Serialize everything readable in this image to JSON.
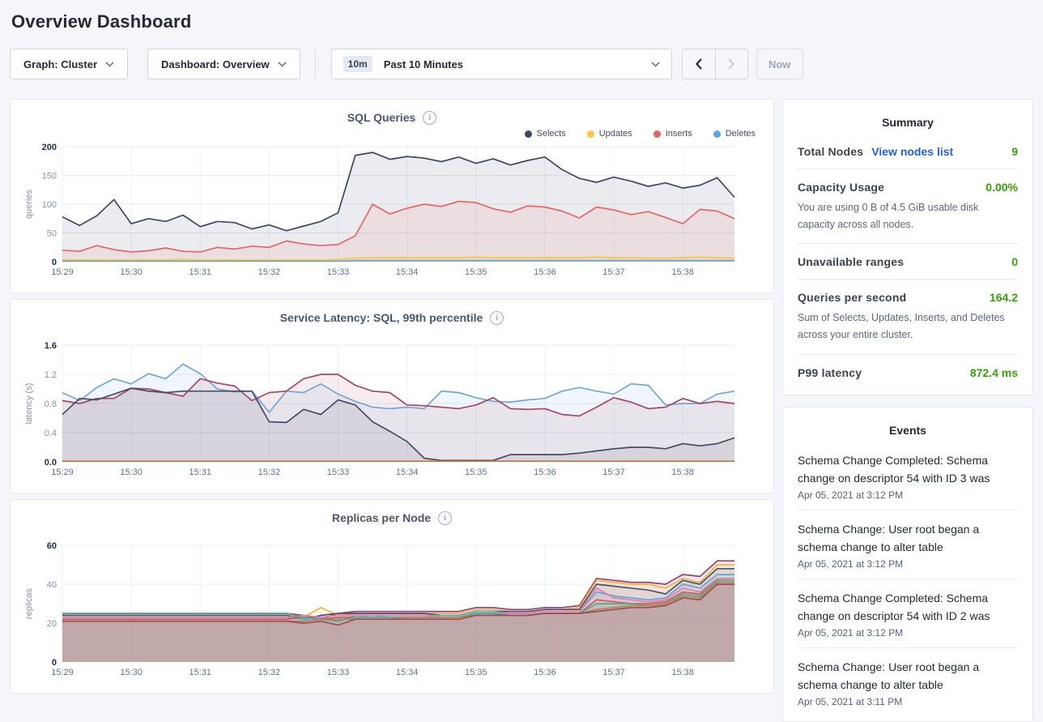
{
  "page": {
    "title": "Overview Dashboard"
  },
  "controls": {
    "graph_dropdown": {
      "label": "Graph: Cluster"
    },
    "dashboard_dropdown": {
      "label": "Dashboard: Overview"
    },
    "time_range": {
      "badge": "10m",
      "label": "Past 10 Minutes"
    },
    "prev_icon": "chevron-left",
    "next_icon": "chevron-right",
    "now_button": "Now"
  },
  "summary": {
    "title": "Summary",
    "total_nodes": {
      "label": "Total Nodes",
      "link": "View nodes list",
      "value": "9"
    },
    "capacity": {
      "label": "Capacity Usage",
      "value": "0.00%",
      "caption": "You are using 0 B of 4.5 GiB usable disk capacity across all nodes."
    },
    "unavailable": {
      "label": "Unavailable ranges",
      "value": "0"
    },
    "qps": {
      "label": "Queries per second",
      "value": "164.2",
      "caption": "Sum of Selects, Updates, Inserts, and Deletes across your entire cluster."
    },
    "p99": {
      "label": "P99 latency",
      "value": "872.4 ms"
    }
  },
  "events": {
    "title": "Events",
    "items": [
      {
        "message": "Schema Change Completed: Schema change on descriptor 54 with ID 3 was",
        "timestamp": "Apr 05, 2021 at 3:12 PM"
      },
      {
        "message": "Schema Change: User root began a schema change to alter table",
        "timestamp": "Apr 05, 2021 at 3:12 PM"
      },
      {
        "message": "Schema Change Completed: Schema change on descriptor 54 with ID 2 was",
        "timestamp": "Apr 05, 2021 at 3:12 PM"
      },
      {
        "message": "Schema Change: User root began a schema change to alter table",
        "timestamp": "Apr 05, 2021 at 3:11 PM"
      }
    ]
  },
  "chart_data": [
    {
      "type": "area",
      "title": "SQL Queries",
      "ylabel": "queries",
      "ylim": [
        0,
        200
      ],
      "yticks": [
        "0",
        "50",
        "100",
        "150",
        "200"
      ],
      "x_labels": [
        "15:29",
        "15:30",
        "15:31",
        "15:32",
        "15:33",
        "15:34",
        "15:35",
        "15:36",
        "15:37",
        "15:38"
      ],
      "points_per_tick": 4,
      "fill_opacity": 0.1,
      "legend_position": "top-right",
      "grid": true,
      "series": [
        {
          "name": "Selects",
          "color": "#3c4962",
          "values": [
            78,
            63,
            80,
            108,
            66,
            75,
            70,
            81,
            61,
            70,
            68,
            57,
            64,
            54,
            62,
            70,
            85,
            185,
            190,
            178,
            183,
            180,
            174,
            182,
            171,
            179,
            168,
            176,
            182,
            160,
            145,
            138,
            147,
            140,
            131,
            137,
            128,
            133,
            146,
            112
          ]
        },
        {
          "name": "Updates",
          "color": "#ffc53d",
          "values": [
            3,
            3,
            3,
            3,
            3,
            3,
            3,
            4,
            3,
            3,
            3,
            3,
            3,
            3,
            3,
            3,
            4,
            6,
            7,
            7,
            7,
            7,
            7,
            7,
            8,
            7,
            7,
            7,
            7,
            7,
            7,
            8,
            7,
            7,
            6,
            6,
            7,
            8,
            7,
            6
          ]
        },
        {
          "name": "Inserts",
          "color": "#e96565",
          "values": [
            20,
            18,
            28,
            21,
            17,
            19,
            24,
            18,
            17,
            25,
            22,
            27,
            25,
            36,
            31,
            28,
            30,
            45,
            100,
            83,
            93,
            100,
            96,
            105,
            103,
            92,
            86,
            97,
            95,
            88,
            76,
            95,
            90,
            82,
            87,
            77,
            66,
            91,
            88,
            75
          ]
        },
        {
          "name": "Deletes",
          "color": "#5aa8d9",
          "values": [
            1,
            1,
            1,
            1,
            1,
            1,
            1,
            1,
            1,
            1,
            1,
            1,
            1,
            1,
            1,
            1,
            1,
            2,
            2,
            2,
            2,
            2,
            2,
            2,
            2,
            2,
            2,
            2,
            2,
            2,
            2,
            2,
            2,
            2,
            2,
            2,
            2,
            2,
            2,
            2
          ]
        }
      ]
    },
    {
      "type": "area",
      "title": "Service Latency: SQL, 99th percentile",
      "ylabel": "latency (s)",
      "ylim": [
        0,
        1.6
      ],
      "yticks": [
        "0.0",
        "0.4",
        "0.8",
        "1.2",
        "1.6"
      ],
      "x_labels": [
        "15:29",
        "15:30",
        "15:31",
        "15:32",
        "15:33",
        "15:34",
        "15:35",
        "15:36",
        "15:37",
        "15:38"
      ],
      "points_per_tick": 4,
      "fill_opacity": 0.1,
      "legend_position": "none",
      "grid": true,
      "series": [
        {
          "name": "",
          "color": "#6fa8d8",
          "values": [
            0.95,
            0.84,
            1.02,
            1.14,
            1.07,
            1.21,
            1.14,
            1.34,
            1.21,
            1.0,
            0.96,
            0.97,
            0.68,
            0.97,
            0.95,
            1.07,
            0.93,
            0.83,
            0.75,
            0.73,
            0.75,
            0.73,
            0.97,
            0.95,
            0.88,
            0.83,
            0.82,
            0.85,
            0.87,
            0.97,
            1.02,
            0.97,
            0.93,
            1.07,
            1.05,
            0.78,
            0.8,
            0.8,
            0.93,
            0.97
          ]
        },
        {
          "name": "",
          "color": "#a5495f",
          "values": [
            0.84,
            0.8,
            0.87,
            0.87,
            1.01,
            1.0,
            0.95,
            0.9,
            1.14,
            1.08,
            1.04,
            0.84,
            0.95,
            0.97,
            1.14,
            1.2,
            1.2,
            1.05,
            0.97,
            0.95,
            0.78,
            0.77,
            0.75,
            0.73,
            0.78,
            0.88,
            0.73,
            0.72,
            0.73,
            0.65,
            0.63,
            0.75,
            0.88,
            0.82,
            0.73,
            0.75,
            0.87,
            0.8,
            0.83,
            0.8
          ]
        },
        {
          "name": "",
          "color": "#424e66",
          "values": [
            0.65,
            0.87,
            0.85,
            0.93,
            1.01,
            0.97,
            0.95,
            0.97,
            0.97,
            0.97,
            0.97,
            0.97,
            0.55,
            0.54,
            0.72,
            0.65,
            0.85,
            0.78,
            0.55,
            0.42,
            0.28,
            0.05,
            0.02,
            0.02,
            0.02,
            0.02,
            0.1,
            0.1,
            0.1,
            0.1,
            0.12,
            0.15,
            0.18,
            0.2,
            0.2,
            0.18,
            0.25,
            0.22,
            0.25,
            0.33
          ]
        },
        {
          "name": "",
          "color": "#c07a4e",
          "values": [
            0.01,
            0.01,
            0.01,
            0.01,
            0.01,
            0.01,
            0.01,
            0.01,
            0.01,
            0.01,
            0.01,
            0.01,
            0.01,
            0.01,
            0.01,
            0.01,
            0.01,
            0.01,
            0.01,
            0.01,
            0.01,
            0.01,
            0.01,
            0.01,
            0.01,
            0.01,
            0.01,
            0.01,
            0.01,
            0.01,
            0.01,
            0.01,
            0.01,
            0.01,
            0.01,
            0.01,
            0.01,
            0.01,
            0.01,
            0.01
          ]
        }
      ]
    },
    {
      "type": "area",
      "title": "Replicas per Node",
      "ylabel": "replicas",
      "ylim": [
        0,
        60
      ],
      "yticks": [
        "0",
        "20",
        "40",
        "60"
      ],
      "x_labels": [
        "15:29",
        "15:30",
        "15:31",
        "15:32",
        "15:33",
        "15:34",
        "15:35",
        "15:36",
        "15:37",
        "15:38"
      ],
      "points_per_tick": 4,
      "fill_opacity": 0.1,
      "legend_position": "none",
      "grid": true,
      "series": [
        {
          "name": "",
          "color": "#9c3d78",
          "values": [
            25,
            25,
            25,
            25,
            25,
            25,
            25,
            25,
            25,
            25,
            25,
            25,
            25,
            25,
            24,
            22,
            25,
            26,
            26,
            26,
            26,
            26,
            26,
            26,
            28,
            28,
            27,
            27,
            28,
            28,
            29,
            43,
            42,
            41,
            41,
            40,
            45,
            44,
            52,
            52
          ]
        },
        {
          "name": "",
          "color": "#f2b53a",
          "values": [
            24,
            24,
            24,
            24,
            24,
            24,
            24,
            24,
            24,
            24,
            24,
            24,
            24,
            24,
            23,
            28,
            24,
            25,
            25,
            25,
            25,
            25,
            25,
            25,
            27,
            27,
            26,
            26,
            27,
            27,
            28,
            42,
            41,
            40,
            40,
            38,
            43,
            41,
            50,
            50
          ]
        },
        {
          "name": "",
          "color": "#4a5569",
          "values": [
            24,
            24,
            24,
            24,
            24,
            24,
            24,
            24,
            24,
            24,
            24,
            24,
            24,
            24,
            22,
            24,
            25,
            25,
            25,
            25,
            25,
            25,
            24,
            24,
            26,
            26,
            26,
            26,
            27,
            27,
            27,
            40,
            39,
            38,
            37,
            35,
            42,
            40,
            48,
            48
          ]
        },
        {
          "name": "",
          "color": "#5aa8d9",
          "values": [
            23,
            23,
            23,
            23,
            23,
            23,
            23,
            23,
            23,
            23,
            23,
            23,
            23,
            23,
            22,
            23,
            21,
            24,
            23,
            24,
            24,
            24,
            24,
            24,
            26,
            26,
            25,
            25,
            26,
            26,
            26,
            36,
            34,
            33,
            32,
            33,
            40,
            38,
            45,
            45
          ]
        },
        {
          "name": "",
          "color": "#e47cb0",
          "values": [
            23,
            23,
            23,
            23,
            23,
            23,
            23,
            23,
            23,
            23,
            23,
            23,
            23,
            23,
            24,
            23,
            24,
            24,
            24,
            24,
            24,
            24,
            23,
            23,
            25,
            25,
            25,
            25,
            26,
            26,
            26,
            38,
            33,
            32,
            31,
            32,
            38,
            36,
            43,
            43
          ]
        },
        {
          "name": "",
          "color": "#cf5a5a",
          "values": [
            22,
            22,
            22,
            22,
            22,
            22,
            22,
            22,
            22,
            22,
            22,
            22,
            22,
            22,
            23,
            22,
            23,
            23,
            23,
            23,
            23,
            23,
            23,
            23,
            25,
            25,
            24,
            24,
            25,
            25,
            25,
            32,
            31,
            30,
            30,
            31,
            36,
            35,
            42,
            42
          ]
        },
        {
          "name": "",
          "color": "#4fae8e",
          "values": [
            25,
            25,
            25,
            25,
            25,
            25,
            25,
            25,
            25,
            25,
            25,
            25,
            25,
            25,
            23,
            22,
            21,
            23,
            23,
            23,
            23,
            23,
            23,
            23,
            25,
            25,
            24,
            24,
            25,
            25,
            25,
            30,
            30,
            30,
            29,
            30,
            35,
            34,
            42,
            42
          ]
        },
        {
          "name": "",
          "color": "#b08455",
          "values": [
            21,
            21,
            21,
            21,
            21,
            21,
            21,
            21,
            21,
            21,
            21,
            21,
            21,
            21,
            21,
            22,
            22,
            22,
            22,
            22,
            23,
            23,
            23,
            23,
            24,
            24,
            24,
            24,
            25,
            25,
            25,
            27,
            28,
            29,
            29,
            30,
            34,
            33,
            41,
            41
          ]
        },
        {
          "name": "",
          "color": "#a04a55",
          "values": [
            21,
            21,
            21,
            21,
            21,
            21,
            21,
            21,
            21,
            21,
            21,
            21,
            21,
            21,
            20,
            21,
            19,
            22,
            22,
            22,
            22,
            22,
            22,
            22,
            24,
            24,
            24,
            24,
            25,
            25,
            25,
            26,
            27,
            28,
            28,
            29,
            33,
            32,
            40,
            40
          ]
        }
      ]
    }
  ]
}
